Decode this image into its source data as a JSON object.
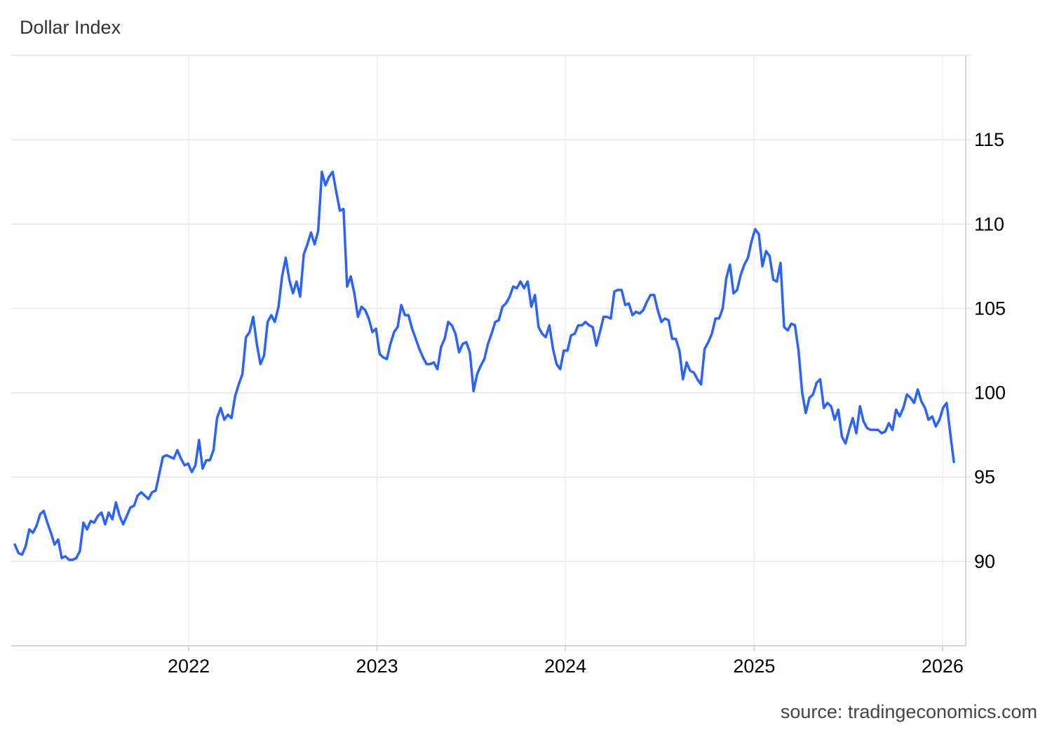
{
  "chart_data": {
    "type": "line",
    "title": "Dollar Index",
    "source": "source: tradingeconomics.com",
    "xlabel": "",
    "ylabel": "",
    "ylim": [
      85,
      120
    ],
    "y_ticks": [
      90,
      95,
      100,
      105,
      110,
      115
    ],
    "x_ticks": [
      "2022",
      "2023",
      "2024",
      "2025",
      "2026"
    ],
    "grid": true,
    "colors": {
      "line": "#2962ff",
      "grid": "#e6e6e6",
      "axis": "#cccccc"
    },
    "series": [
      {
        "x": [
          "2021-01-29",
          "2021-02-05",
          "2021-02-12",
          "2021-02-19",
          "2021-02-26",
          "2021-03-05",
          "2021-03-12",
          "2021-03-19",
          "2021-03-26",
          "2021-04-02",
          "2021-04-09",
          "2021-04-16",
          "2021-04-23",
          "2021-04-30",
          "2021-05-07",
          "2021-05-14",
          "2021-05-21",
          "2021-05-28",
          "2021-06-04",
          "2021-06-11",
          "2021-06-18",
          "2021-06-25",
          "2021-07-02",
          "2021-07-09",
          "2021-07-16",
          "2021-07-23",
          "2021-07-30",
          "2021-08-06",
          "2021-08-13",
          "2021-08-20",
          "2021-08-27",
          "2021-09-03",
          "2021-09-10",
          "2021-09-17",
          "2021-09-24",
          "2021-10-01",
          "2021-10-08",
          "2021-10-15",
          "2021-10-22",
          "2021-10-29",
          "2021-11-05",
          "2021-11-12",
          "2021-11-19",
          "2021-11-26",
          "2021-12-03",
          "2021-12-10",
          "2021-12-17",
          "2021-12-24",
          "2021-12-31",
          "2022-01-07",
          "2022-01-14",
          "2022-01-21",
          "2022-01-28",
          "2022-02-04",
          "2022-02-11",
          "2022-02-18",
          "2022-02-25",
          "2022-03-04",
          "2022-03-11",
          "2022-03-18",
          "2022-03-25",
          "2022-04-01",
          "2022-04-08",
          "2022-04-15",
          "2022-04-22",
          "2022-04-29",
          "2022-05-06",
          "2022-05-13",
          "2022-05-20",
          "2022-05-27",
          "2022-06-03",
          "2022-06-10",
          "2022-06-17",
          "2022-06-24",
          "2022-07-01",
          "2022-07-08",
          "2022-07-15",
          "2022-07-22",
          "2022-07-29",
          "2022-08-05",
          "2022-08-12",
          "2022-08-19",
          "2022-08-26",
          "2022-09-02",
          "2022-09-09",
          "2022-09-16",
          "2022-09-23",
          "2022-09-30",
          "2022-10-07",
          "2022-10-14",
          "2022-10-21",
          "2022-10-28",
          "2022-11-04",
          "2022-11-11",
          "2022-11-18",
          "2022-11-25",
          "2022-12-02",
          "2022-12-09",
          "2022-12-16",
          "2022-12-23",
          "2022-12-30",
          "2023-01-06",
          "2023-01-13",
          "2023-01-20",
          "2023-01-27",
          "2023-02-03",
          "2023-02-10",
          "2023-02-17",
          "2023-02-24",
          "2023-03-03",
          "2023-03-10",
          "2023-03-17",
          "2023-03-24",
          "2023-03-31",
          "2023-04-07",
          "2023-04-14",
          "2023-04-21",
          "2023-04-28",
          "2023-05-05",
          "2023-05-12",
          "2023-05-19",
          "2023-05-26",
          "2023-06-02",
          "2023-06-09",
          "2023-06-16",
          "2023-06-23",
          "2023-06-30",
          "2023-07-07",
          "2023-07-14",
          "2023-07-21",
          "2023-07-28",
          "2023-08-04",
          "2023-08-11",
          "2023-08-18",
          "2023-08-25",
          "2023-09-01",
          "2023-09-08",
          "2023-09-15",
          "2023-09-22",
          "2023-09-29",
          "2023-10-06",
          "2023-10-13",
          "2023-10-20",
          "2023-10-27",
          "2023-11-03",
          "2023-11-10",
          "2023-11-17",
          "2023-11-24",
          "2023-12-01",
          "2023-12-08",
          "2023-12-15",
          "2023-12-22",
          "2023-12-29",
          "2024-01-05",
          "2024-01-12",
          "2024-01-19",
          "2024-01-26",
          "2024-02-02",
          "2024-02-09",
          "2024-02-16",
          "2024-02-23",
          "2024-03-01",
          "2024-03-08",
          "2024-03-15",
          "2024-03-22",
          "2024-03-29",
          "2024-04-05",
          "2024-04-12",
          "2024-04-19",
          "2024-04-26",
          "2024-05-03",
          "2024-05-10",
          "2024-05-17",
          "2024-05-24",
          "2024-05-31",
          "2024-06-07",
          "2024-06-14",
          "2024-06-21",
          "2024-06-28",
          "2024-07-05",
          "2024-07-12",
          "2024-07-19",
          "2024-07-26",
          "2024-08-02",
          "2024-08-09",
          "2024-08-16",
          "2024-08-23",
          "2024-08-30",
          "2024-09-06",
          "2024-09-13",
          "2024-09-20",
          "2024-09-27",
          "2024-10-04",
          "2024-10-11",
          "2024-10-18",
          "2024-10-25",
          "2024-11-01",
          "2024-11-08",
          "2024-11-15",
          "2024-11-22",
          "2024-11-29",
          "2024-12-06",
          "2024-12-13",
          "2024-12-20",
          "2024-12-27",
          "2025-01-03",
          "2025-01-10",
          "2025-01-17",
          "2025-01-24",
          "2025-01-31",
          "2025-02-07",
          "2025-02-14",
          "2025-02-21",
          "2025-02-28",
          "2025-03-07",
          "2025-03-14",
          "2025-03-21",
          "2025-03-28",
          "2025-04-04",
          "2025-04-11",
          "2025-04-18",
          "2025-04-25",
          "2025-05-02",
          "2025-05-09",
          "2025-05-16",
          "2025-05-23",
          "2025-05-30",
          "2025-06-06",
          "2025-06-13",
          "2025-06-20",
          "2025-06-27",
          "2025-07-04",
          "2025-07-11",
          "2025-07-18",
          "2025-07-25",
          "2025-08-01",
          "2025-08-08",
          "2025-08-15",
          "2025-08-22",
          "2025-08-29",
          "2025-09-05",
          "2025-09-12",
          "2025-09-19",
          "2025-09-26",
          "2025-10-03",
          "2025-10-10",
          "2025-10-17",
          "2025-10-24",
          "2025-10-31",
          "2025-11-07",
          "2025-11-14",
          "2025-11-21",
          "2025-11-28",
          "2025-12-05",
          "2025-12-12",
          "2025-12-19",
          "2025-12-26",
          "2026-01-02",
          "2026-01-09",
          "2026-01-16",
          "2026-01-23"
        ],
        "values": [
          91.0,
          90.5,
          90.4,
          90.9,
          91.9,
          91.7,
          92.1,
          92.8,
          93.0,
          92.3,
          91.7,
          91.0,
          91.3,
          90.2,
          90.3,
          90.1,
          90.1,
          90.2,
          90.6,
          92.3,
          91.9,
          92.4,
          92.3,
          92.7,
          92.9,
          92.2,
          92.9,
          92.5,
          93.5,
          92.7,
          92.2,
          92.7,
          93.2,
          93.3,
          93.9,
          94.1,
          93.9,
          93.7,
          94.1,
          94.2,
          95.2,
          96.2,
          96.3,
          96.2,
          96.1,
          96.6,
          96.1,
          95.7,
          95.8,
          95.3,
          95.7,
          97.2,
          95.5,
          96.0,
          96.0,
          96.6,
          98.5,
          99.1,
          98.4,
          98.7,
          98.5,
          99.8,
          100.5,
          101.1,
          103.3,
          103.6,
          104.5,
          102.9,
          101.7,
          102.2,
          104.2,
          104.6,
          104.2,
          105.1,
          106.9,
          108.0,
          106.7,
          105.9,
          106.6,
          105.7,
          108.2,
          108.8,
          109.5,
          108.8,
          109.6,
          113.1,
          112.3,
          112.8,
          113.1,
          111.9,
          110.8,
          110.9,
          106.3,
          106.9,
          105.9,
          104.5,
          105.1,
          104.9,
          104.4,
          103.6,
          103.8,
          102.3,
          102.1,
          102.0,
          102.9,
          103.6,
          103.9,
          105.2,
          104.6,
          104.6,
          103.8,
          103.2,
          102.6,
          102.1,
          101.7,
          101.7,
          101.8,
          101.4,
          102.7,
          103.2,
          104.2,
          104.0,
          103.5,
          102.4,
          102.9,
          103.0,
          102.4,
          100.1,
          101.1,
          101.6,
          102.0,
          102.9,
          103.5,
          104.2,
          104.3,
          105.1,
          105.3,
          105.7,
          106.3,
          106.2,
          106.6,
          106.2,
          106.6,
          105.1,
          105.8,
          103.9,
          103.5,
          103.3,
          104.0,
          102.6,
          101.7,
          101.4,
          102.5,
          102.5,
          103.4,
          103.5,
          104.0,
          104.0,
          104.2,
          104.0,
          103.9,
          102.8,
          103.6,
          104.5,
          104.5,
          104.4,
          106.0,
          106.1,
          106.1,
          105.2,
          105.3,
          104.6,
          104.8,
          104.7,
          104.9,
          105.4,
          105.8,
          105.8,
          104.9,
          104.2,
          104.4,
          104.3,
          103.2,
          103.2,
          102.5,
          100.8,
          101.8,
          101.3,
          101.2,
          100.8,
          100.5,
          102.6,
          103.0,
          103.5,
          104.4,
          104.4,
          105.0,
          106.8,
          107.6,
          105.9,
          106.1,
          107.0,
          107.6,
          108.0,
          109.0,
          109.7,
          109.4,
          107.5,
          108.4,
          108.1,
          106.7,
          106.6,
          107.7,
          103.9,
          103.7,
          104.1,
          104.0,
          102.5,
          100.0,
          98.8,
          99.7,
          99.9,
          100.6,
          100.8,
          99.1,
          99.4,
          99.2,
          98.4,
          99.0,
          97.4,
          97.0,
          97.8,
          98.5,
          97.6,
          99.2,
          98.3,
          97.9,
          97.8,
          97.8,
          97.8,
          97.6,
          97.7,
          98.2,
          97.8,
          99.0,
          98.6,
          99.1,
          99.9,
          99.7,
          99.4,
          100.2,
          99.5,
          99.1,
          98.4,
          98.6,
          98.0,
          98.4,
          99.1,
          99.4,
          97.6,
          95.9
        ]
      }
    ]
  }
}
